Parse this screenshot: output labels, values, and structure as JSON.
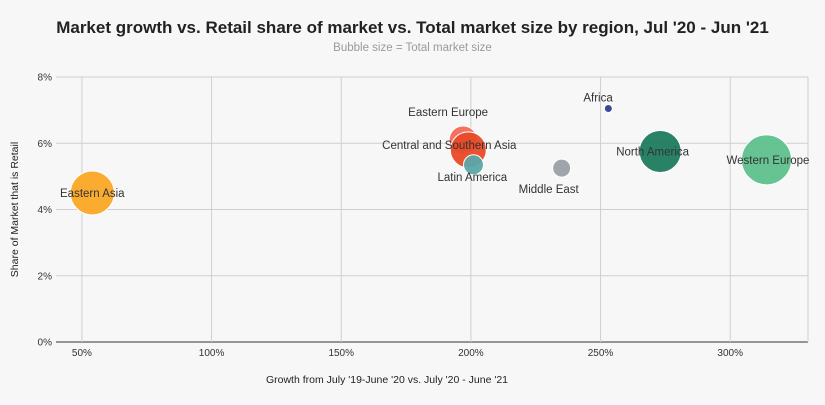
{
  "chart_data": {
    "type": "scatter",
    "title": "Market growth vs. Retail share of market vs. Total market size by region, Jul '20 - Jun '21",
    "subtitle": "Bubble size = Total market size",
    "xlabel": "Growth from July '19-June '20 vs. July '20 - June '21",
    "ylabel": "Share of Market that is Retail",
    "xlim": [
      40,
      330
    ],
    "ylim": [
      0,
      8
    ],
    "x_ticks": [
      50,
      100,
      150,
      200,
      250,
      300
    ],
    "x_tick_labels": [
      "50%",
      "100%",
      "150%",
      "200%",
      "250%",
      "300%"
    ],
    "y_ticks": [
      0,
      2,
      4,
      6,
      8
    ],
    "y_tick_labels": [
      "0%",
      "2%",
      "4%",
      "6%",
      "8%"
    ],
    "grid": true,
    "points": [
      {
        "label": "Eastern Asia",
        "x": 54,
        "y": 4.5,
        "size": 22,
        "color": "#F9A825"
      },
      {
        "label": "Eastern Europe",
        "x": 197,
        "y": 6.1,
        "size": 14,
        "color": "#F26B5B"
      },
      {
        "label": "Central and Southern Asia",
        "x": 199,
        "y": 5.8,
        "size": 18,
        "color": "#E84A27"
      },
      {
        "label": "Latin America",
        "x": 201,
        "y": 5.35,
        "size": 10,
        "color": "#5BA8A8"
      },
      {
        "label": "Middle East",
        "x": 235,
        "y": 5.25,
        "size": 9,
        "color": "#9AA0A6"
      },
      {
        "label": "Africa",
        "x": 253,
        "y": 7.05,
        "size": 4,
        "color": "#2F3F8F"
      },
      {
        "label": "North America",
        "x": 273,
        "y": 5.75,
        "size": 21,
        "color": "#1E7A5E"
      },
      {
        "label": "Western Europe",
        "x": 314,
        "y": 5.5,
        "size": 25,
        "color": "#5EC08C"
      }
    ]
  }
}
